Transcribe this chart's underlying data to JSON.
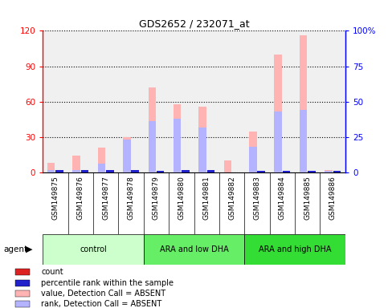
{
  "title": "GDS2652 / 232071_at",
  "samples": [
    "GSM149875",
    "GSM149876",
    "GSM149877",
    "GSM149878",
    "GSM149879",
    "GSM149880",
    "GSM149881",
    "GSM149882",
    "GSM149883",
    "GSM149884",
    "GSM149885",
    "GSM149886"
  ],
  "groups": [
    {
      "label": "control",
      "indices": [
        0,
        1,
        2,
        3
      ],
      "color": "#ccffcc"
    },
    {
      "label": "ARA and low DHA",
      "indices": [
        4,
        5,
        6,
        7
      ],
      "color": "#66ee66"
    },
    {
      "label": "ARA and high DHA",
      "indices": [
        8,
        9,
        10,
        11
      ],
      "color": "#33dd33"
    }
  ],
  "value_absent": [
    8,
    14,
    21,
    30,
    72,
    58,
    56,
    10,
    35,
    100,
    116,
    2
  ],
  "rank_absent": [
    2,
    2,
    6,
    23,
    36,
    38,
    32,
    0,
    18,
    43,
    44,
    1
  ],
  "count_present": [
    0,
    0,
    0,
    0,
    0,
    0,
    0,
    0,
    0,
    0,
    0,
    0
  ],
  "rank_present": [
    2,
    2,
    2,
    2,
    1,
    2,
    2,
    0,
    1,
    1,
    1,
    1
  ],
  "ylim_left": [
    0,
    120
  ],
  "ylim_right": [
    0,
    100
  ],
  "yticks_left": [
    0,
    30,
    60,
    90,
    120
  ],
  "yticks_right": [
    0,
    25,
    50,
    75,
    100
  ],
  "ytick_labels_left": [
    "0",
    "30",
    "60",
    "90",
    "120"
  ],
  "ytick_labels_right": [
    "0",
    "25",
    "50",
    "75",
    "100%"
  ],
  "bar_width": 0.3,
  "color_value_absent": "#ffb3b3",
  "color_rank_absent": "#b3b3ff",
  "color_count_present": "#dd2222",
  "color_rank_present": "#2222cc",
  "legend_items": [
    {
      "color": "#dd2222",
      "label": "count"
    },
    {
      "color": "#2222cc",
      "label": "percentile rank within the sample"
    },
    {
      "color": "#ffb3b3",
      "label": "value, Detection Call = ABSENT"
    },
    {
      "color": "#b3b3ff",
      "label": "rank, Detection Call = ABSENT"
    }
  ],
  "background_plot": "#f0f0f0",
  "group_bg_colors": [
    "#ccffcc",
    "#66ee66",
    "#33dd33"
  ],
  "label_box_color": "#d0d0d0"
}
